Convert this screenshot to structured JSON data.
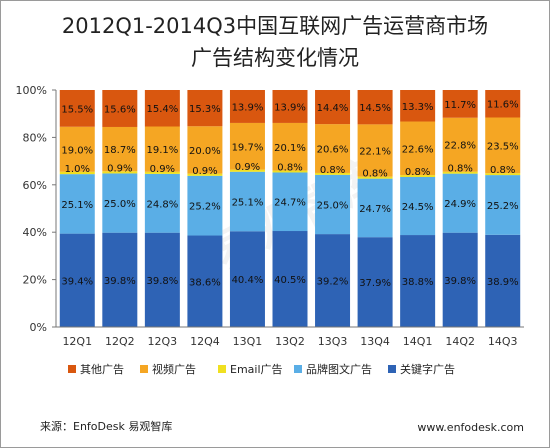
{
  "title_line1": "2012Q1-2014Q3中国互联网广告运营商市场",
  "title_line2": "广告结构变化情况",
  "watermark": "易观智库",
  "footer": {
    "source": "来源：EnfoDesk 易观智库",
    "website": "www.enfodesk.com"
  },
  "chart_data": {
    "type": "bar",
    "stacked": true,
    "percent": true,
    "categories": [
      "12Q1",
      "12Q2",
      "12Q3",
      "12Q4",
      "13Q1",
      "13Q2",
      "13Q3",
      "13Q4",
      "14Q1",
      "14Q2",
      "14Q3"
    ],
    "ylim": [
      0,
      100
    ],
    "yticks": [
      "0%",
      "20%",
      "40%",
      "60%",
      "80%",
      "100%"
    ],
    "legend_position": "bottom",
    "series": [
      {
        "name": "关键字广告",
        "color": "#2e63b5",
        "values": [
          39.4,
          39.8,
          39.8,
          38.6,
          40.4,
          40.5,
          39.2,
          37.9,
          38.8,
          39.8,
          38.9
        ],
        "labels": [
          "39.4%",
          "39.8%",
          "39.8%",
          "38.6%",
          "40.4%",
          "40.5%",
          "39.2%",
          "37.9%",
          "38.8%",
          "39.8%",
          "38.9%"
        ]
      },
      {
        "name": "品牌图文广告",
        "color": "#5aaee6",
        "values": [
          25.1,
          25.0,
          24.8,
          25.2,
          25.1,
          24.7,
          25.0,
          24.7,
          24.5,
          24.9,
          25.2
        ],
        "labels": [
          "25.1%",
          "25.0%",
          "24.8%",
          "25.2%",
          "25.1%",
          "24.7%",
          "25.0%",
          "24.7%",
          "24.5%",
          "24.9%",
          "25.2%"
        ]
      },
      {
        "name": "Email广告",
        "color": "#f0e020",
        "values": [
          1.0,
          0.9,
          0.9,
          0.9,
          0.9,
          0.8,
          0.8,
          0.8,
          0.8,
          0.8,
          0.8
        ],
        "labels": [
          "1.0%",
          "0.9%",
          "0.9%",
          "0.9%",
          "0.9%",
          "0.8%",
          "0.8%",
          "0.8%",
          "0.8%",
          "0.8%",
          "0.8%"
        ]
      },
      {
        "name": "视频广告",
        "color": "#f5a623",
        "values": [
          19.0,
          18.7,
          19.1,
          20.0,
          19.7,
          20.1,
          20.6,
          22.1,
          22.6,
          22.8,
          23.5
        ],
        "labels": [
          "19.0%",
          "18.7%",
          "19.1%",
          "20.0%",
          "19.7%",
          "20.1%",
          "20.6%",
          "22.1%",
          "22.6%",
          "22.8%",
          "23.5%"
        ]
      },
      {
        "name": "其他广告",
        "color": "#d9570f",
        "values": [
          15.5,
          15.6,
          15.4,
          15.3,
          13.9,
          13.9,
          14.4,
          14.5,
          13.3,
          11.7,
          11.6
        ],
        "labels": [
          "15.5%",
          "15.6%",
          "15.4%",
          "15.3%",
          "13.9%",
          "13.9%",
          "14.4%",
          "14.5%",
          "13.3%",
          "11.7%",
          "11.6%"
        ]
      }
    ],
    "legend_order": [
      "其他广告",
      "视频广告",
      "Email广告",
      "品牌图文广告",
      "关键字广告"
    ]
  }
}
